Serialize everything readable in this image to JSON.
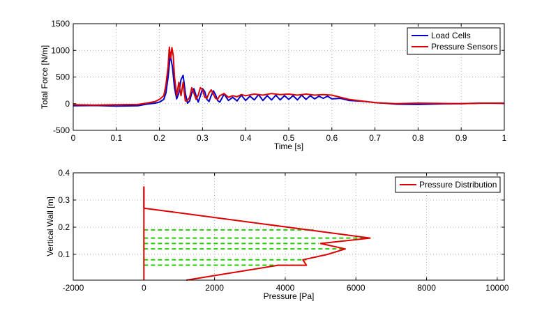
{
  "chart_data": [
    {
      "type": "line",
      "xlabel": "Time [s]",
      "ylabel": "Total Force [N/m]",
      "xlim": [
        0,
        1
      ],
      "ylim": [
        -500,
        1500
      ],
      "xticks": [
        0,
        0.1,
        0.2,
        0.3,
        0.4,
        0.5,
        0.6,
        0.7,
        0.8,
        0.9,
        1
      ],
      "xtick_labels": [
        "0",
        "0.1",
        "0.2",
        "0.3",
        "0.4",
        "0.5",
        "0.6",
        "0.7",
        "0.8",
        "0.9",
        "1"
      ],
      "yticks": [
        -500,
        0,
        500,
        1000,
        1500
      ],
      "ytick_labels": [
        "-500",
        "0",
        "500",
        "1000",
        "1500"
      ],
      "grid": true,
      "legend_position": "top-right",
      "series": [
        {
          "name": "Load Cells",
          "color": "#0000cc",
          "x": [
            0,
            0.05,
            0.1,
            0.15,
            0.17,
            0.19,
            0.2,
            0.21,
            0.215,
            0.22,
            0.225,
            0.23,
            0.235,
            0.24,
            0.245,
            0.25,
            0.255,
            0.26,
            0.265,
            0.27,
            0.275,
            0.28,
            0.285,
            0.29,
            0.295,
            0.3,
            0.305,
            0.31,
            0.315,
            0.32,
            0.325,
            0.33,
            0.335,
            0.34,
            0.35,
            0.36,
            0.37,
            0.38,
            0.39,
            0.4,
            0.41,
            0.42,
            0.43,
            0.44,
            0.45,
            0.46,
            0.47,
            0.48,
            0.49,
            0.5,
            0.51,
            0.52,
            0.53,
            0.54,
            0.55,
            0.56,
            0.57,
            0.58,
            0.59,
            0.6,
            0.62,
            0.64,
            0.66,
            0.68,
            0.7,
            0.72,
            0.75,
            0.8,
            0.85,
            0.9,
            0.95,
            1.0
          ],
          "y": [
            -40,
            -35,
            -45,
            -40,
            -10,
            10,
            30,
            80,
            200,
            500,
            910,
            700,
            300,
            90,
            200,
            450,
            530,
            200,
            10,
            50,
            200,
            280,
            150,
            30,
            150,
            280,
            230,
            80,
            40,
            150,
            240,
            170,
            60,
            30,
            180,
            60,
            120,
            50,
            160,
            60,
            140,
            70,
            170,
            60,
            150,
            70,
            160,
            70,
            150,
            80,
            150,
            70,
            160,
            80,
            150,
            90,
            140,
            100,
            140,
            90,
            100,
            60,
            50,
            40,
            20,
            10,
            -10,
            -15,
            -5,
            0,
            10,
            5
          ]
        },
        {
          "name": "Pressure Sensors",
          "color": "#dd0000",
          "x": [
            0,
            0.05,
            0.1,
            0.15,
            0.17,
            0.19,
            0.2,
            0.21,
            0.215,
            0.22,
            0.223,
            0.226,
            0.229,
            0.232,
            0.235,
            0.24,
            0.245,
            0.25,
            0.255,
            0.26,
            0.265,
            0.27,
            0.275,
            0.28,
            0.285,
            0.29,
            0.295,
            0.3,
            0.305,
            0.31,
            0.315,
            0.32,
            0.325,
            0.33,
            0.335,
            0.34,
            0.35,
            0.36,
            0.37,
            0.38,
            0.39,
            0.4,
            0.42,
            0.44,
            0.46,
            0.48,
            0.5,
            0.52,
            0.54,
            0.56,
            0.58,
            0.6,
            0.62,
            0.64,
            0.66,
            0.68,
            0.7,
            0.72,
            0.75,
            0.8,
            0.85,
            0.9,
            0.95,
            1.0
          ],
          "y": [
            -20,
            -25,
            -20,
            -15,
            10,
            40,
            80,
            150,
            350,
            700,
            1060,
            850,
            1050,
            900,
            500,
            150,
            400,
            150,
            400,
            50,
            60,
            120,
            300,
            200,
            80,
            160,
            300,
            260,
            120,
            100,
            200,
            260,
            180,
            100,
            80,
            150,
            190,
            120,
            150,
            130,
            170,
            150,
            180,
            160,
            190,
            170,
            180,
            160,
            180,
            160,
            170,
            160,
            120,
            80,
            60,
            40,
            20,
            10,
            0,
            10,
            5,
            0,
            10,
            10
          ]
        }
      ]
    },
    {
      "type": "line",
      "xlabel": "Pressure [Pa]",
      "ylabel": "Vertical Wall [m]",
      "xlim": [
        -2000,
        10200
      ],
      "ylim": [
        0.005,
        0.4
      ],
      "xticks": [
        -2000,
        0,
        2000,
        4000,
        6000,
        8000,
        10000
      ],
      "xtick_labels": [
        "-2000",
        "0",
        "2000",
        "4000",
        "6000",
        "8000",
        "10000"
      ],
      "yticks": [
        0.1,
        0.2,
        0.3,
        0.4
      ],
      "ytick_labels": [
        "0.1",
        "0.2",
        "0.3",
        "0.4"
      ],
      "grid": true,
      "legend_position": "top-right",
      "series": [
        {
          "name": "Pressure Distribution",
          "color": "#dd0000",
          "x": [
            0,
            0,
            0,
            6400,
            5000,
            5700,
            5200,
            4500,
            4600,
            3800,
            1200
          ],
          "y": [
            0.35,
            0.27,
            0.27,
            0.16,
            0.14,
            0.12,
            0.1,
            0.08,
            0.06,
            0.06,
            0.005
          ]
        }
      ],
      "wall_line": {
        "color": "#dd0000",
        "x": [
          0,
          0
        ],
        "y": [
          0.35,
          0.005
        ]
      },
      "dashed_levels": {
        "color": "#22cc00",
        "y": [
          0.19,
          0.16,
          0.14,
          0.12,
          0.08,
          0.06
        ],
        "x_start": 0,
        "x_end": [
          4800,
          6400,
          4950,
          5700,
          4600,
          4500
        ]
      }
    }
  ]
}
